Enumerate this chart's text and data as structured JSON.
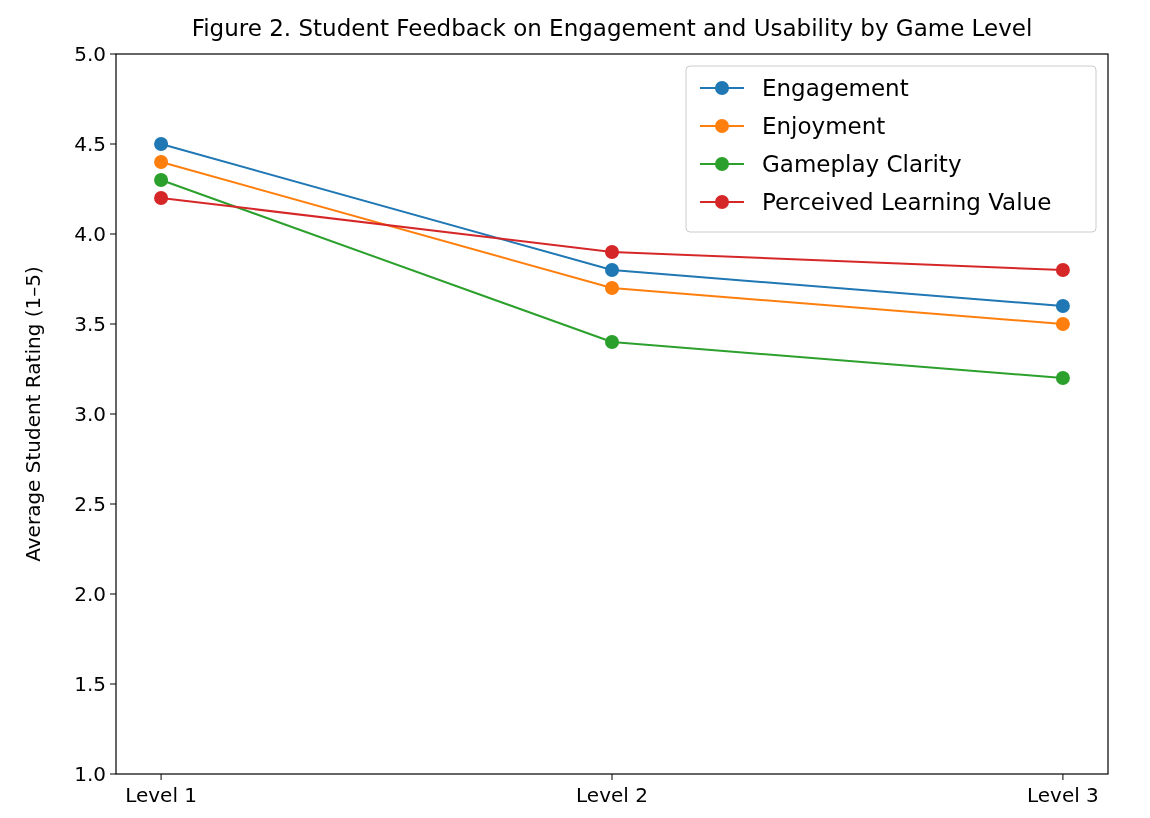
{
  "chart_data": {
    "type": "line",
    "title": "Figure 2. Student Feedback on Engagement and Usability by Game Level",
    "ylabel": "Average Student Rating (1–5)",
    "categories": [
      "Level 1",
      "Level 2",
      "Level 3"
    ],
    "series": [
      {
        "name": "Engagement",
        "color": "#1f77b4",
        "values": [
          4.5,
          3.8,
          3.6
        ]
      },
      {
        "name": "Enjoyment",
        "color": "#ff7f0e",
        "values": [
          4.4,
          3.7,
          3.5
        ]
      },
      {
        "name": "Gameplay Clarity",
        "color": "#2ca02c",
        "values": [
          4.3,
          3.4,
          3.2
        ]
      },
      {
        "name": "Perceived Learning Value",
        "color": "#d62728",
        "values": [
          4.2,
          3.9,
          3.8
        ]
      }
    ],
    "ylim": [
      1,
      5
    ],
    "yticks": [
      {
        "value": 1,
        "label": "1.0"
      },
      {
        "value": 1.5,
        "label": "1.5"
      },
      {
        "value": 2,
        "label": "2.0"
      },
      {
        "value": 2.5,
        "label": "2.5"
      },
      {
        "value": 3,
        "label": "3.0"
      },
      {
        "value": 3.5,
        "label": "3.5"
      },
      {
        "value": 4,
        "label": "4.0"
      },
      {
        "value": 4.5,
        "label": "4.5"
      },
      {
        "value": 5,
        "label": "5.0"
      }
    ],
    "grid": false,
    "legend": "top right",
    "marker": "circle",
    "line_style": "solid"
  }
}
